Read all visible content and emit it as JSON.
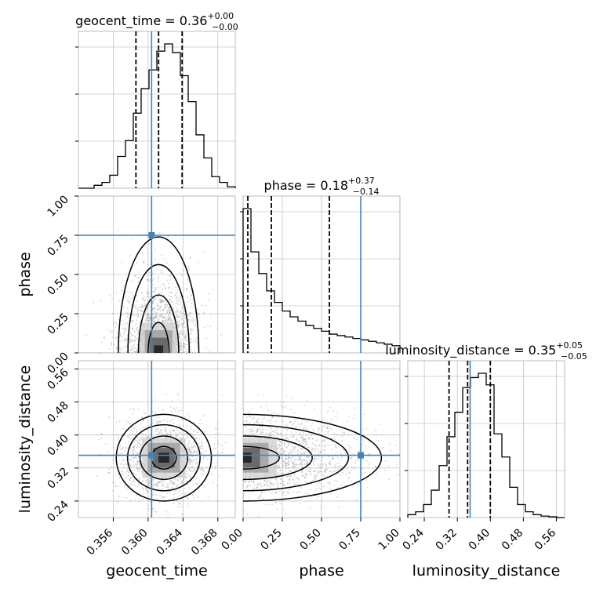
{
  "chart_data": {
    "type": "corner",
    "grid": true,
    "parameters": [
      {
        "name": "geocent_time",
        "range": [
          0.352,
          0.37
        ],
        "ticks": [
          0.356,
          0.36,
          0.364,
          0.368
        ],
        "tick_labels": [
          "0.356",
          "0.360",
          "0.364",
          "0.368"
        ]
      },
      {
        "name": "phase",
        "range": [
          0.0,
          1.0
        ],
        "ticks": [
          0.0,
          0.25,
          0.5,
          0.75,
          1.0
        ],
        "tick_labels": [
          "0.00",
          "0.25",
          "0.50",
          "0.75",
          "1.00"
        ]
      },
      {
        "name": "luminosity_distance",
        "range": [
          0.2,
          0.58
        ],
        "ticks": [
          0.24,
          0.32,
          0.4,
          0.48,
          0.56
        ],
        "tick_labels": [
          "0.24",
          "0.32",
          "0.40",
          "0.48",
          "0.56"
        ]
      }
    ],
    "titles": [
      {
        "text": "geocent_time = 0.36",
        "sup": "+0.00",
        "sub": "−0.00"
      },
      {
        "text": "phase = 0.18",
        "sup": "+0.37",
        "sub": "−0.14"
      },
      {
        "text": "luminosity_distance = 0.35",
        "sup": "+0.05",
        "sub": "−0.05"
      }
    ],
    "truths": {
      "geocent_time": 0.3604,
      "phase": 0.75,
      "luminosity_distance": 0.351
    },
    "truth_color": "#4682b4",
    "quantiles": {
      "geocent_time": [
        0.3586,
        0.3612,
        0.3639
      ],
      "phase": [
        0.03,
        0.18,
        0.55
      ],
      "luminosity_distance": [
        0.3,
        0.345,
        0.4
      ]
    },
    "histograms": {
      "geocent_time": {
        "edges_range": [
          0.352,
          0.37
        ],
        "bins": 20,
        "values": [
          0,
          0,
          0.02,
          0.04,
          0.09,
          0.22,
          0.33,
          0.52,
          0.69,
          0.82,
          0.95,
          1.0,
          0.94,
          0.78,
          0.6,
          0.37,
          0.21,
          0.08,
          0.04,
          0.01
        ]
      },
      "phase": {
        "edges_range": [
          0.0,
          1.0
        ],
        "bins": 20,
        "values": [
          1.0,
          0.7,
          0.55,
          0.43,
          0.35,
          0.29,
          0.25,
          0.22,
          0.19,
          0.17,
          0.15,
          0.13,
          0.12,
          0.11,
          0.1,
          0.09,
          0.08,
          0.07,
          0.06,
          0.05
        ]
      },
      "luminosity_distance": {
        "edges_range": [
          0.2,
          0.58
        ],
        "bins": 20,
        "values": [
          0.02,
          0.04,
          0.09,
          0.19,
          0.36,
          0.56,
          0.73,
          0.9,
          0.97,
          1.0,
          0.92,
          0.58,
          0.42,
          0.21,
          0.09,
          0.04,
          0.02,
          0.01,
          0.005,
          0
        ]
      }
    },
    "density": {
      "phase_vs_geocent_time": {
        "mean": [
          0.3612,
          0.18
        ],
        "sd": [
          0.0022,
          0.22
        ]
      },
      "luminosity_distance_vs_geocent_time": {
        "mean": [
          0.3618,
          0.345
        ],
        "sd": [
          0.0026,
          0.05
        ]
      },
      "luminosity_distance_vs_phase": {
        "mean": [
          0.05,
          0.345
        ],
        "sd": [
          0.3,
          0.05
        ]
      }
    }
  }
}
